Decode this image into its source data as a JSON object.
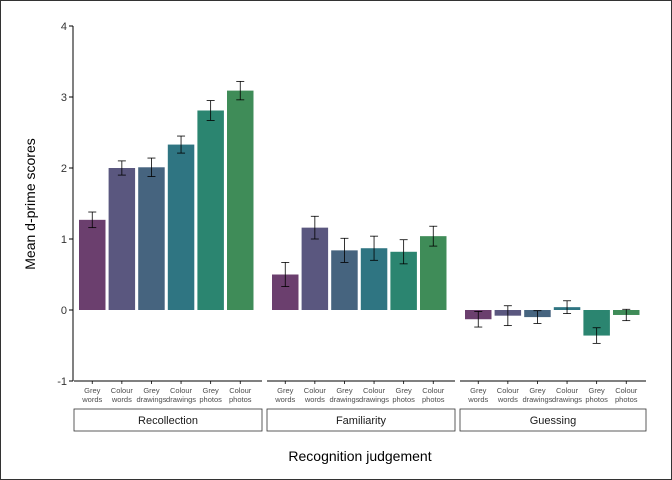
{
  "chart_data": {
    "type": "bar",
    "xlabel": "Recognition judgement",
    "ylabel": "Mean d-prime scores",
    "ylim": [
      -1,
      4
    ],
    "yticks": [
      "-1",
      "0",
      "1",
      "2",
      "3",
      "4"
    ],
    "grid": false,
    "legend": "none",
    "categories": [
      [
        "Grey",
        "words"
      ],
      [
        "Colour",
        "words"
      ],
      [
        "Grey",
        "drawings"
      ],
      [
        "Colour",
        "drawings"
      ],
      [
        "Grey",
        "photos"
      ],
      [
        "Colour",
        "photos"
      ]
    ],
    "colors": [
      "#6b3f6e",
      "#5a577f",
      "#46647f",
      "#2f7582",
      "#2b8570",
      "#3f8c58"
    ],
    "panels": [
      {
        "name": "Recollection",
        "values": [
          1.27,
          2.0,
          2.01,
          2.33,
          2.81,
          3.09
        ],
        "errors": [
          0.11,
          0.1,
          0.13,
          0.12,
          0.14,
          0.13
        ]
      },
      {
        "name": "Familiarity",
        "values": [
          0.5,
          1.16,
          0.84,
          0.87,
          0.82,
          1.04
        ],
        "errors": [
          0.17,
          0.16,
          0.17,
          0.17,
          0.17,
          0.14
        ]
      },
      {
        "name": "Guessing",
        "values": [
          -0.13,
          -0.08,
          -0.1,
          0.04,
          -0.36,
          -0.07
        ],
        "errors": [
          0.11,
          0.14,
          0.09,
          0.09,
          0.11,
          0.08
        ]
      }
    ]
  }
}
